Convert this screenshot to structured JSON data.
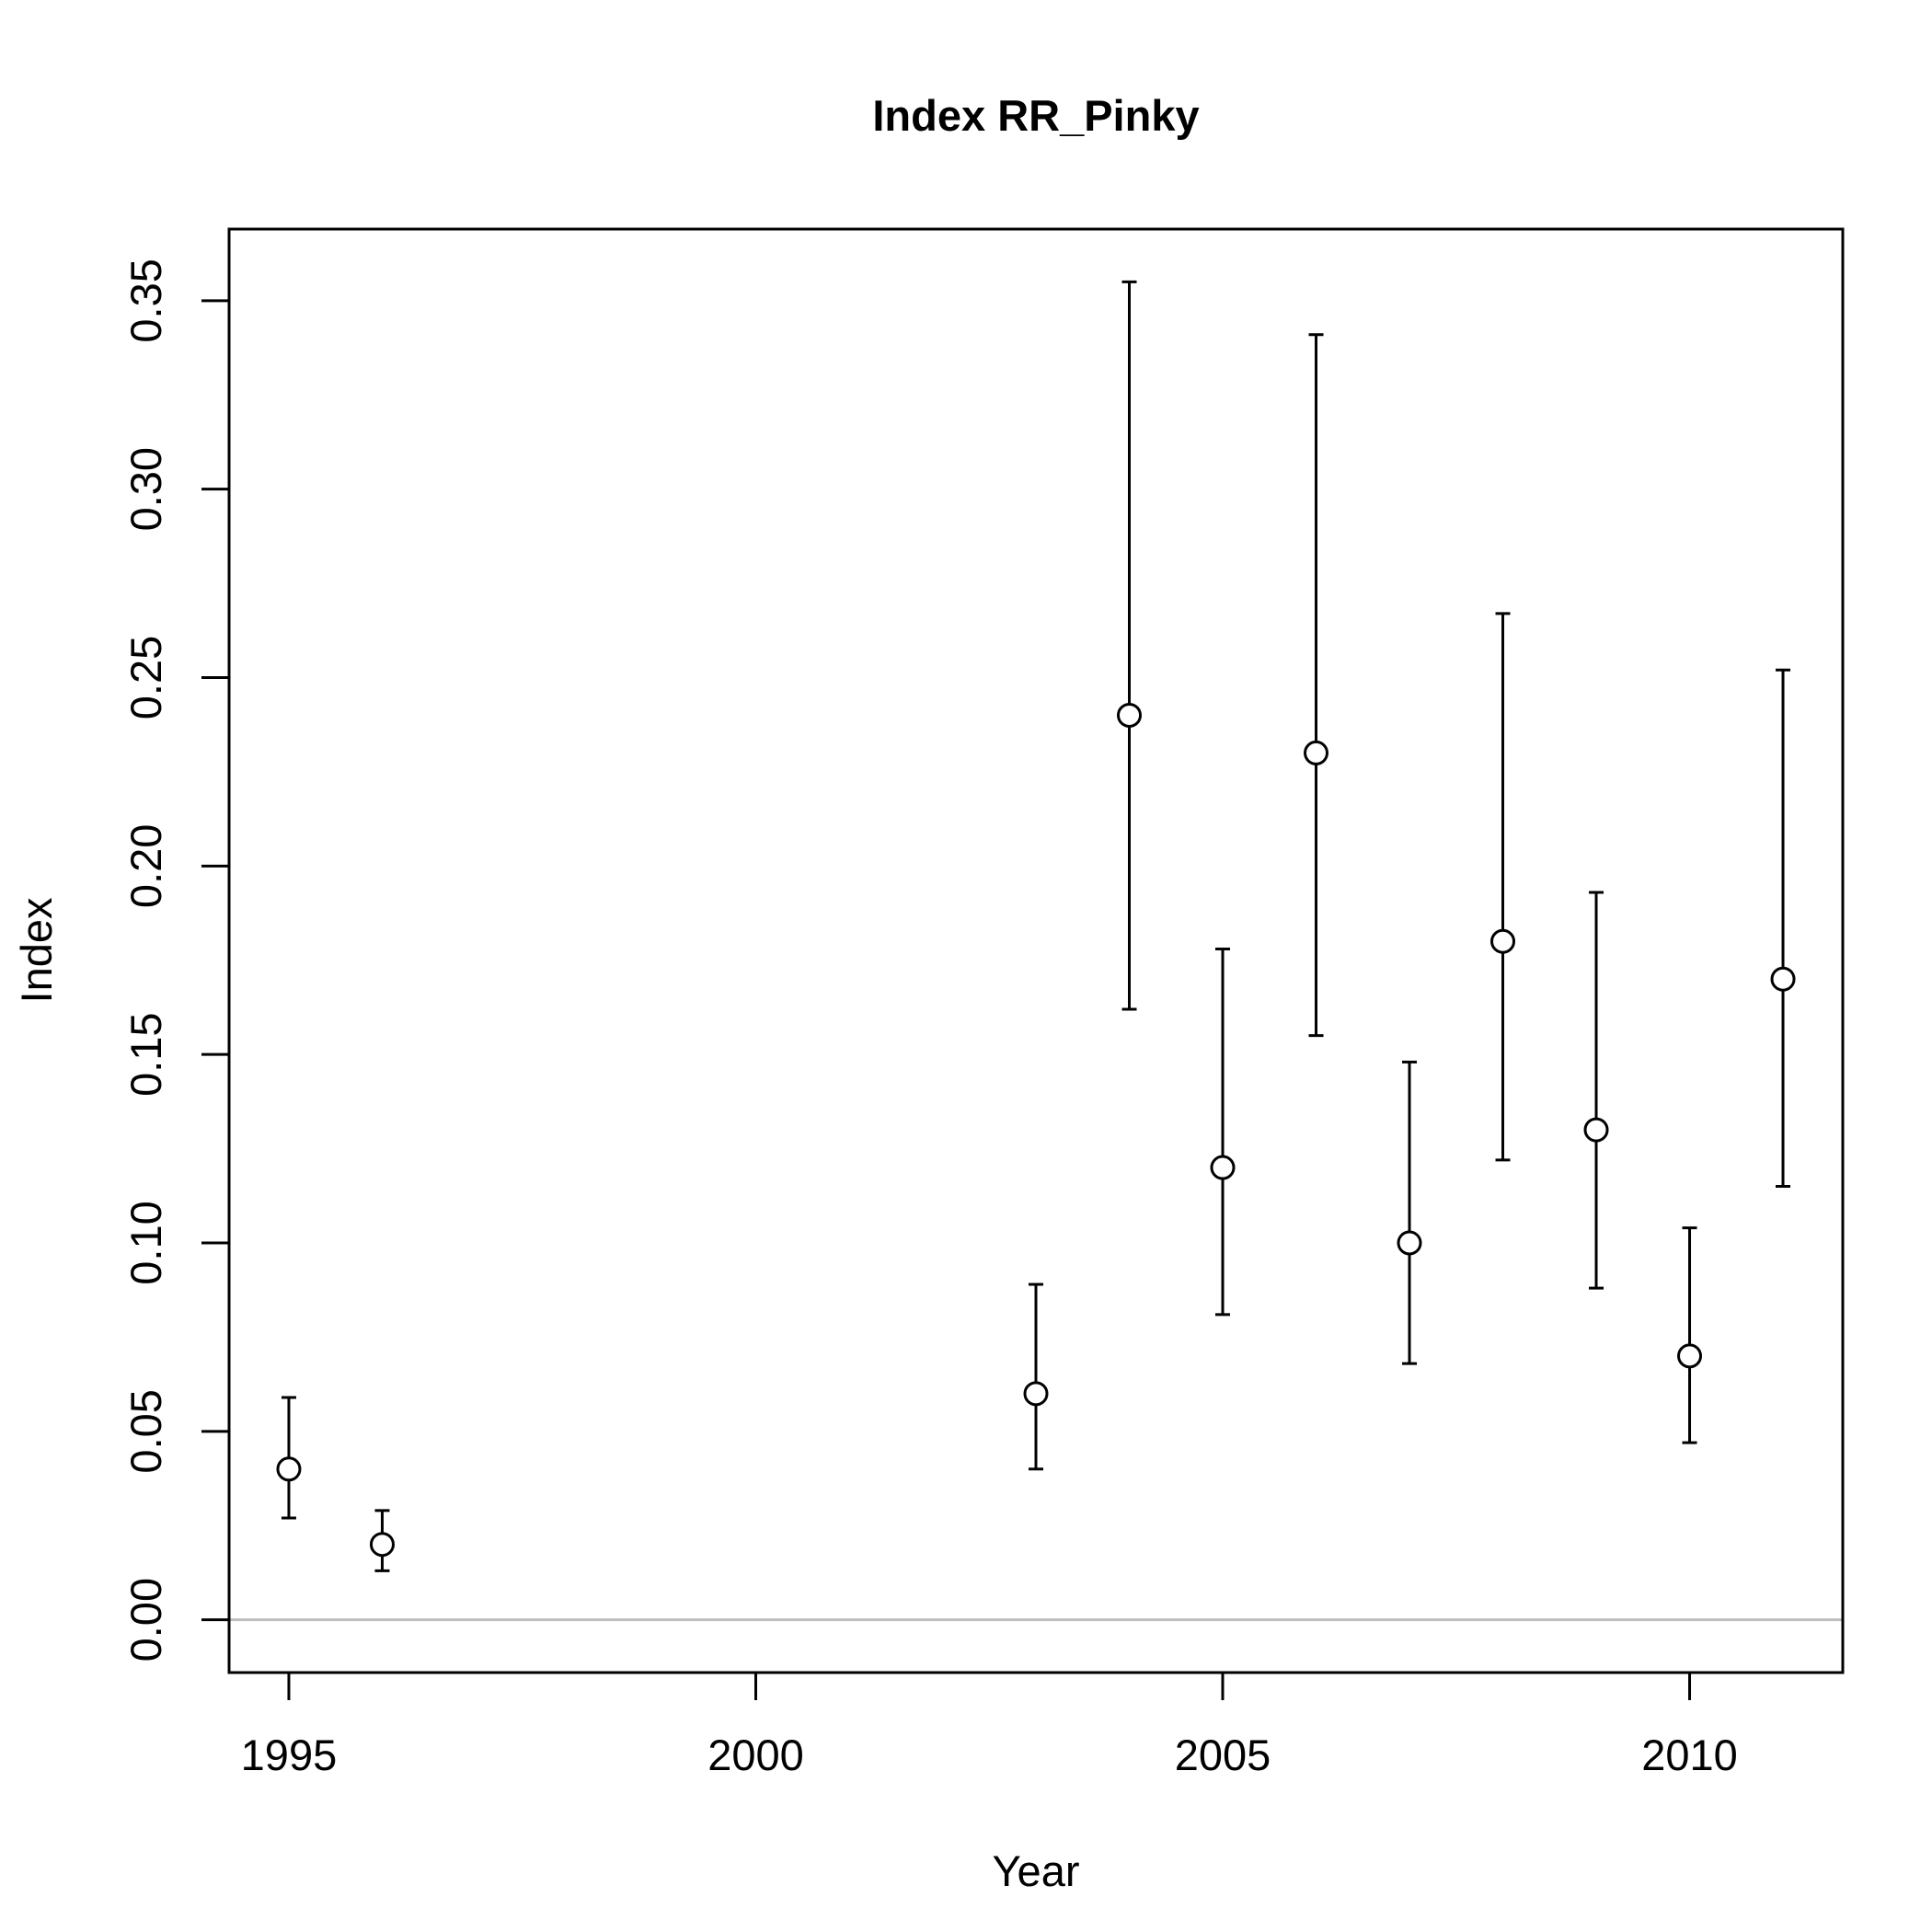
{
  "chart_data": {
    "type": "scatter",
    "title": "Index RR_Pinky",
    "xlabel": "Year",
    "ylabel": "Index",
    "xlim": [
      1994.36,
      2011.64
    ],
    "ylim": [
      -0.014,
      0.369
    ],
    "x_ticks": [
      1995,
      2000,
      2005,
      2010
    ],
    "x_tick_labels": [
      "1995",
      "2000",
      "2005",
      "2010"
    ],
    "y_ticks": [
      0,
      0.05,
      0.1,
      0.15,
      0.2,
      0.25,
      0.3,
      0.35
    ],
    "y_tick_labels": [
      "0.00",
      "0.05",
      "0.10",
      "0.15",
      "0.20",
      "0.25",
      "0.30",
      "0.35"
    ],
    "grid": false,
    "reference_line": {
      "y": 0,
      "color": "#bebebe"
    },
    "marker": "open-circle",
    "error_bars": true,
    "points": [
      {
        "x": 1995,
        "y": 0.04,
        "lower": 0.027,
        "upper": 0.059
      },
      {
        "x": 1996,
        "y": 0.02,
        "lower": 0.013,
        "upper": 0.029
      },
      {
        "x": 2003,
        "y": 0.06,
        "lower": 0.04,
        "upper": 0.089
      },
      {
        "x": 2004,
        "y": 0.24,
        "lower": 0.162,
        "upper": 0.355
      },
      {
        "x": 2005,
        "y": 0.12,
        "lower": 0.081,
        "upper": 0.178
      },
      {
        "x": 2006,
        "y": 0.23,
        "lower": 0.155,
        "upper": 0.341
      },
      {
        "x": 2007,
        "y": 0.1,
        "lower": 0.068,
        "upper": 0.148
      },
      {
        "x": 2008,
        "y": 0.18,
        "lower": 0.122,
        "upper": 0.267
      },
      {
        "x": 2009,
        "y": 0.13,
        "lower": 0.088,
        "upper": 0.193
      },
      {
        "x": 2010,
        "y": 0.07,
        "lower": 0.047,
        "upper": 0.104
      },
      {
        "x": 2011,
        "y": 0.17,
        "lower": 0.115,
        "upper": 0.252
      }
    ]
  }
}
